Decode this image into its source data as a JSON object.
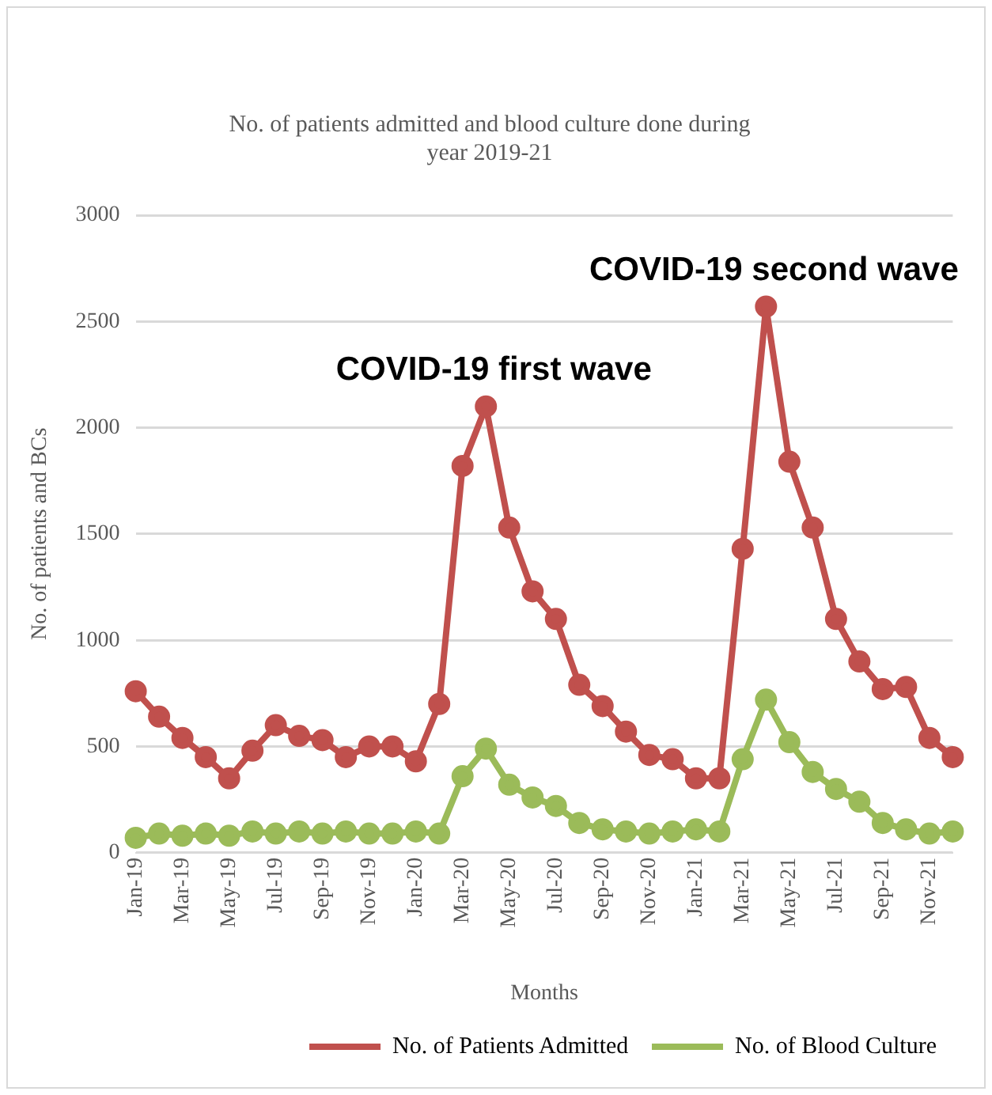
{
  "chart_data": {
    "type": "line",
    "title": "No. of patients admitted and blood culture done during year 2019-21",
    "xlabel": "Months",
    "ylabel": "No. of patients and BCs",
    "categories": [
      "Jan-19",
      null,
      "Mar-19",
      null,
      "May-19",
      null,
      "Jul-19",
      null,
      "Sep-19",
      null,
      "Nov-19",
      null,
      "Jan-20",
      null,
      "Mar-20",
      null,
      "May-20",
      null,
      "Jul-20",
      null,
      "Sep-20",
      null,
      "Nov-20",
      null,
      "Jan-21",
      null,
      "Mar-21",
      null,
      "May-21",
      null,
      "Jul-21",
      null,
      "Sep-21",
      null,
      "Nov-21",
      null
    ],
    "series": [
      {
        "name": "No. of Patients Admitted",
        "color": "#c0504d",
        "values": [
          760,
          640,
          540,
          450,
          350,
          480,
          600,
          550,
          530,
          450,
          500,
          500,
          430,
          700,
          1820,
          2100,
          1530,
          1230,
          1100,
          790,
          690,
          570,
          460,
          440,
          350,
          350,
          1430,
          2570,
          1840,
          1530,
          1100,
          900,
          770,
          780,
          540,
          450
        ]
      },
      {
        "name": "No. of Blood Culture",
        "color": "#9bbb59",
        "values": [
          70,
          90,
          80,
          90,
          80,
          100,
          90,
          100,
          90,
          100,
          90,
          90,
          100,
          90,
          360,
          490,
          320,
          260,
          220,
          140,
          110,
          100,
          90,
          100,
          110,
          100,
          440,
          720,
          520,
          380,
          300,
          240,
          140,
          110,
          90,
          100
        ]
      }
    ],
    "ylim": [
      0,
      3000
    ],
    "yticks": [
      0,
      500,
      1000,
      1500,
      2000,
      2500,
      3000
    ],
    "grid": "y",
    "legend": "bottom right",
    "marker": "circle",
    "line_style": "solid",
    "annotations": [
      "COVID-19 first wave",
      "COVID-19 second wave"
    ]
  }
}
